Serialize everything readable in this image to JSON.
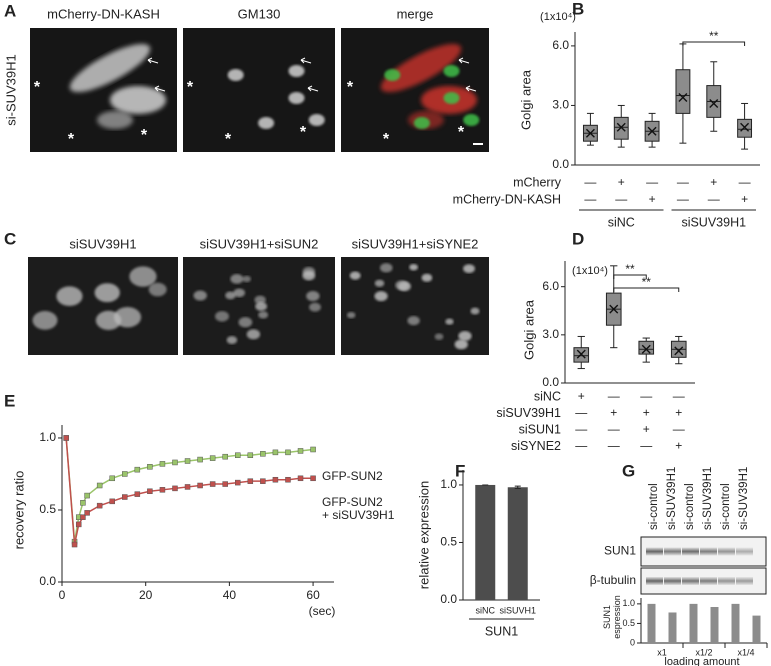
{
  "figure": {
    "panel_labels": [
      "A",
      "B",
      "C",
      "D",
      "E",
      "F",
      "G"
    ],
    "row_label_A": "si-SUV39H1",
    "images_A": [
      {
        "title": "mCherry-DN-KASH",
        "marks": [
          "*",
          "*",
          "*"
        ]
      },
      {
        "title": "GM130",
        "marks": [
          "*",
          "*",
          "*"
        ]
      },
      {
        "title": "merge",
        "marks": [
          "*",
          "*",
          "*"
        ]
      }
    ],
    "images_C": [
      {
        "title": "siSUV39H1"
      },
      {
        "title": "siSUV39H1+siSUN2"
      },
      {
        "title": "siSUV39H1+siSYNE2"
      }
    ],
    "blot": {
      "lanes": [
        "si-control",
        "si-SUV39H1",
        "si-control",
        "si-SUV39H1",
        "si-control",
        "si-SUV39H1"
      ],
      "rows": [
        "SUN1",
        "β-tubulin"
      ]
    }
  },
  "chart_data": [
    {
      "type": "box",
      "unit": "(1x10⁴)",
      "ylabel": "Golgi area",
      "color": "#8c8c8c",
      "ylim": [
        0,
        6.7
      ],
      "yticks": [
        {
          "value": 0,
          "label": "0.0"
        },
        {
          "value": 3,
          "label": "3.0"
        },
        {
          "value": 6,
          "label": "6.0"
        }
      ],
      "boxes": [
        {
          "min": 1.0,
          "q1": 1.2,
          "median": 1.6,
          "q3": 2.0,
          "max": 2.6,
          "mean": 1.6
        },
        {
          "min": 0.9,
          "q1": 1.3,
          "median": 1.9,
          "q3": 2.4,
          "max": 3.0,
          "mean": 1.9
        },
        {
          "min": 0.9,
          "q1": 1.2,
          "median": 1.7,
          "q3": 2.2,
          "max": 2.6,
          "mean": 1.7
        },
        {
          "min": 1.1,
          "q1": 2.6,
          "median": 3.5,
          "q3": 4.8,
          "max": 6.1,
          "mean": 3.4
        },
        {
          "min": 1.7,
          "q1": 2.4,
          "median": 3.2,
          "q3": 4.0,
          "max": 5.2,
          "mean": 3.1
        },
        {
          "min": 0.8,
          "q1": 1.4,
          "median": 1.8,
          "q3": 2.3,
          "max": 3.1,
          "mean": 1.9
        }
      ],
      "brackets": [
        {
          "text": "**",
          "between": [
            3,
            5
          ]
        }
      ],
      "conditions": [
        {
          "name": "mCherry",
          "signs": [
            "—",
            "+",
            "—",
            "—",
            "+",
            "—"
          ]
        },
        {
          "name": "mCherry-DN-KASH",
          "signs": [
            "—",
            "—",
            "+",
            "—",
            "—",
            "+"
          ]
        }
      ],
      "groups": [
        "siNC",
        "siSUV39H1"
      ]
    },
    {
      "type": "box",
      "unit": "(1x10⁴)",
      "ylabel": "Golgi area",
      "color": "#8c8c8c",
      "ylim": [
        0,
        7.6
      ],
      "yticks": [
        {
          "value": 0,
          "label": "0.0"
        },
        {
          "value": 3,
          "label": "3.0"
        },
        {
          "value": 6,
          "label": "6.0"
        }
      ],
      "boxes": [
        {
          "min": 0.9,
          "q1": 1.3,
          "median": 1.7,
          "q3": 2.2,
          "max": 2.9,
          "mean": 1.8
        },
        {
          "min": 2.2,
          "q1": 3.6,
          "median": 4.6,
          "q3": 5.6,
          "max": 7.3,
          "mean": 4.6
        },
        {
          "min": 1.3,
          "q1": 1.8,
          "median": 2.1,
          "q3": 2.6,
          "max": 2.8,
          "mean": 2.1
        },
        {
          "min": 1.2,
          "q1": 1.6,
          "median": 2.1,
          "q3": 2.6,
          "max": 2.9,
          "mean": 2.0
        }
      ],
      "brackets": [
        {
          "text": "**",
          "between": [
            1,
            2
          ]
        },
        {
          "text": "**",
          "between": [
            1,
            3
          ]
        }
      ],
      "conditions": [
        {
          "name": "siNC",
          "signs": [
            "+",
            "—",
            "—",
            "—"
          ]
        },
        {
          "name": "siSUV39H1",
          "signs": [
            "—",
            "+",
            "+",
            "+"
          ]
        },
        {
          "name": "siSUN1",
          "signs": [
            "—",
            "—",
            "+",
            "—"
          ]
        },
        {
          "name": "siSYNE2",
          "signs": [
            "—",
            "—",
            "—",
            "+"
          ]
        }
      ]
    },
    {
      "type": "line",
      "ylabel": "recovery ratio",
      "xlabel": "(sec)",
      "x": [
        1,
        3,
        4,
        5,
        6,
        9,
        12,
        15,
        18,
        21,
        24,
        27,
        30,
        33,
        36,
        39,
        42,
        45,
        48,
        51,
        54,
        57,
        60
      ],
      "xlim": [
        0,
        65
      ],
      "xticks": [
        0,
        20,
        40,
        60
      ],
      "ylim": [
        0,
        1.09
      ],
      "yticks": [
        {
          "value": 0,
          "label": "0.0"
        },
        {
          "value": 0.5,
          "label": "0.5"
        },
        {
          "value": 1,
          "label": "1.0"
        }
      ],
      "series": [
        {
          "name": "GFP-SUN2",
          "color": "#9ac46a",
          "values": [
            1.0,
            0.28,
            0.45,
            0.55,
            0.6,
            0.67,
            0.72,
            0.75,
            0.78,
            0.8,
            0.82,
            0.83,
            0.84,
            0.85,
            0.86,
            0.87,
            0.88,
            0.88,
            0.89,
            0.9,
            0.9,
            0.91,
            0.92
          ]
        },
        {
          "name": "GFP-SUN2\n+ siSUV39H1",
          "color": "#c0504d",
          "values": [
            1.0,
            0.26,
            0.4,
            0.45,
            0.48,
            0.53,
            0.56,
            0.59,
            0.61,
            0.63,
            0.64,
            0.65,
            0.66,
            0.67,
            0.68,
            0.68,
            0.69,
            0.7,
            0.7,
            0.71,
            0.71,
            0.72,
            0.72
          ]
        }
      ]
    },
    {
      "type": "bar",
      "ylabel": "relative expression",
      "color": "#4d4d4d",
      "categories": [
        "siNC",
        "siSUVH1"
      ],
      "values": [
        1.0,
        0.98
      ],
      "errors": [
        0,
        0.01
      ],
      "ylim": [
        0,
        1.13
      ],
      "yticks": [
        {
          "value": 0,
          "label": "0.0"
        },
        0.5,
        {
          "value": 1,
          "label": "1.0"
        }
      ],
      "groups": [
        "SUN1"
      ]
    },
    {
      "type": "bar",
      "ylabel": "SUN1\nespression",
      "xlabel": "loading amount",
      "color": "#8c8c8c",
      "values": [
        1.0,
        0.78,
        1.0,
        0.92,
        1.0,
        0.7
      ],
      "ylim": [
        0,
        1.15
      ],
      "yticks": [
        0,
        0.5,
        {
          "value": 1,
          "label": "1.0"
        }
      ],
      "groups": [
        "x1",
        "x1/2",
        "x1/4"
      ]
    }
  ]
}
